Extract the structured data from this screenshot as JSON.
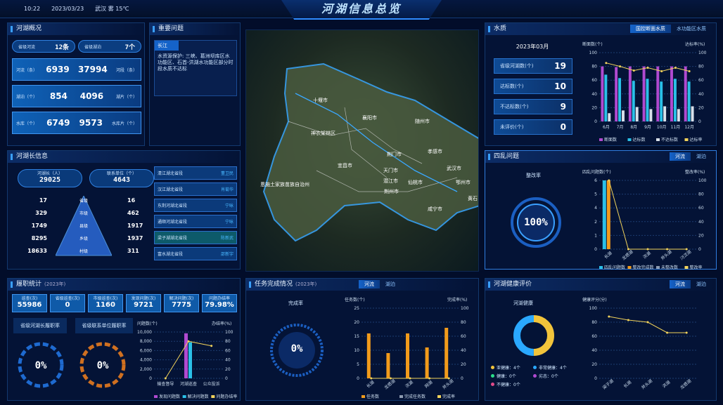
{
  "header": {
    "time": "10:22",
    "date": "2023/03/23",
    "weather": "武汉 雾 15℃",
    "title": "河湖信息总览"
  },
  "overview": {
    "title": "河湖概况",
    "rivers_label": "省级河流",
    "rivers_count": "12条",
    "lakes_label": "省级湖泊",
    "lakes_count": "7个",
    "rows": [
      {
        "l": "河流（条）",
        "v1": "6939",
        "v2": "37994",
        "r": "河段（条）"
      },
      {
        "l": "湖泊（个）",
        "v1": "854",
        "v2": "4096",
        "r": "湖片（个）"
      },
      {
        "l": "水库（个）",
        "v1": "6749",
        "v2": "9573",
        "r": "水库片（个）"
      }
    ]
  },
  "issues": {
    "title": "重要问题",
    "tag": "长江",
    "text": "水资源保护: 三峡、葛洲坝库区水功能区、石首-洪湖水功能区部分时段水质不达标"
  },
  "water": {
    "title": "水质",
    "tabs": [
      "国控断面水质",
      "水功能区水质"
    ],
    "month": "2023年03月",
    "stats": [
      {
        "l": "省级河湖数(个)",
        "v": "19"
      },
      {
        "l": "达标数(个)",
        "v": "10"
      },
      {
        "l": "不达标数(个)",
        "v": "9"
      },
      {
        "l": "未评价(个)",
        "v": "0"
      }
    ],
    "chart_ylabel": "断面数(个)",
    "chart_y2label": "达标率(%)",
    "legend": [
      "断面数",
      "达标数",
      "不达标数",
      "达标率"
    ]
  },
  "chiefs": {
    "title": "河湖长信息",
    "chief_label": "河湖长（人）",
    "chief_count": "29025",
    "unit_label": "联系单位（个）",
    "unit_count": "4643",
    "levels": [
      {
        "l": "17",
        "n": "省级",
        "r": "16"
      },
      {
        "l": "329",
        "n": "市级",
        "r": "462"
      },
      {
        "l": "1749",
        "n": "县级",
        "r": "1917"
      },
      {
        "l": "8295",
        "n": "乡级",
        "r": "1937"
      },
      {
        "l": "18633",
        "n": "村级",
        "r": "311"
      }
    ],
    "list": [
      {
        "n": "清江湖北省段",
        "p": "董卫民"
      },
      {
        "n": "汉江湖北省段",
        "p": "肖菊华"
      },
      {
        "n": "东荆河湖北省段",
        "p": "宁咏"
      },
      {
        "n": "通顺河湖北省段",
        "p": "宁咏"
      },
      {
        "n": "梁子湖湖北省段",
        "p": "陈新武"
      },
      {
        "n": "富水湖北省段",
        "p": "邵新宇"
      }
    ]
  },
  "map": {
    "labels": [
      "十堰市",
      "襄阳市",
      "随州市",
      "神农架林区",
      "荆门市",
      "孝感市",
      "宜昌市",
      "恩施土家族苗族自治州",
      "天门市",
      "武汉市",
      "潜江市",
      "仙桃市",
      "荆州市",
      "鄂州市",
      "咸宁市",
      "黄石"
    ]
  },
  "four": {
    "title": "四乱问题",
    "tabs": [
      "河流",
      "湖泊"
    ],
    "ring_title": "整改率",
    "ring_value": "100",
    "ylabel": "四乱问题数(个)",
    "y2label": "整改率(%)",
    "legend": [
      "四乱问题数",
      "整改完成数",
      "未整改数",
      "整改率"
    ]
  },
  "duty": {
    "title": "履职统计",
    "sub": "(2023年)",
    "stats": [
      {
        "l": "巡查(次)",
        "v": "55986"
      },
      {
        "l": "省级巡查(次)",
        "v": "0"
      },
      {
        "l": "市级巡查(次)",
        "v": "1160"
      },
      {
        "l": "发现问题(次)",
        "v": "9721"
      },
      {
        "l": "解决问题(次)",
        "v": "7775"
      },
      {
        "l": "问题办结率",
        "v": "79.98%"
      }
    ],
    "rate1": "省级河湖长履职率",
    "rate2": "省级联系单位履职率",
    "v1": "0",
    "v2": "0",
    "ylabel": "问题数(个)",
    "y2label": "办结率(%)",
    "legend": [
      "发现问题数",
      "解决问题数",
      "问题办结率"
    ]
  },
  "task": {
    "title": "任务完成情况",
    "sub": "(2023年)",
    "tabs": [
      "河流",
      "湖泊"
    ],
    "ring_title": "完成率",
    "ring_value": "0",
    "ylabel": "任务数(个)",
    "y2label": "完成率(%)",
    "legend": [
      "任务数",
      "完成任务数",
      "完成率"
    ]
  },
  "health": {
    "title": "河湖健康评价",
    "tabs": [
      "河流",
      "湖泊"
    ],
    "pie_title": "河湖健康",
    "ylabel": "健康评分(分)",
    "legend": [
      "亚健康：4个",
      "非常健康：4个",
      "健康：0个",
      "劣态：0个",
      "不健康：0个"
    ]
  },
  "chart_data": [
    {
      "type": "bar",
      "title": "水质",
      "categories": [
        "6月",
        "7月",
        "8月",
        "9月",
        "10月",
        "11月",
        "12月"
      ],
      "series": [
        {
          "name": "断面数",
          "values": [
            80,
            79,
            80,
            80,
            80,
            80,
            80
          ]
        },
        {
          "name": "达标数",
          "values": [
            68,
            63,
            59,
            62,
            58,
            62,
            58
          ]
        },
        {
          "name": "不达标数",
          "values": [
            12,
            16,
            21,
            18,
            22,
            18,
            22
          ]
        },
        {
          "name": "达标率",
          "values": [
            85,
            80,
            74,
            78,
            73,
            78,
            73
          ]
        }
      ],
      "ylim": [
        0,
        100
      ],
      "y2lim": [
        0,
        100
      ]
    },
    {
      "type": "bar",
      "title": "四乱问题",
      "categories": [
        "长湖",
        "龙感湖",
        "洪湖",
        "斧头湖",
        "汈汊湖"
      ],
      "series": [
        {
          "name": "四乱问题数",
          "values": [
            6,
            0,
            0,
            0,
            0
          ]
        },
        {
          "name": "整改完成数",
          "values": [
            6,
            0,
            0,
            0,
            0
          ]
        },
        {
          "name": "未整改数",
          "values": [
            0,
            0,
            0,
            0,
            0
          ]
        },
        {
          "name": "整改率",
          "values": [
            100,
            0,
            0,
            0,
            0
          ]
        }
      ],
      "ylim": [
        0,
        6
      ],
      "y2lim": [
        0,
        100
      ]
    },
    {
      "type": "bar",
      "title": "履职统计",
      "categories": [
        "输查督导",
        "河湖巡查",
        "公众投诉"
      ],
      "series": [
        {
          "name": "发现问题数",
          "values": [
            0,
            9721,
            0
          ]
        },
        {
          "name": "解决问题数",
          "values": [
            0,
            7775,
            0
          ]
        },
        {
          "name": "问题办结率",
          "values": [
            0,
            80,
            70
          ]
        }
      ],
      "ylim": [
        0,
        10000
      ],
      "y2lim": [
        0,
        100
      ]
    },
    {
      "type": "bar",
      "title": "任务完成情况",
      "categories": [
        "长湖",
        "龙感湖",
        "洪湖",
        "网湖",
        "斧头湖"
      ],
      "series": [
        {
          "name": "任务数",
          "values": [
            16,
            9,
            16,
            11,
            18
          ]
        },
        {
          "name": "完成任务数",
          "values": [
            0,
            0,
            0,
            0,
            0
          ]
        },
        {
          "name": "完成率",
          "values": [
            0,
            0,
            0,
            0,
            0
          ]
        }
      ],
      "ylim": [
        0,
        25
      ],
      "y2lim": [
        0,
        100
      ]
    },
    {
      "type": "line",
      "title": "河湖健康评价",
      "categories": [
        "梁子湖",
        "长湖",
        "斧头湖",
        "洪湖",
        "龙感湖"
      ],
      "series": [
        {
          "name": "健康评分",
          "values": [
            88,
            83,
            80,
            65,
            65
          ]
        }
      ],
      "ylim": [
        0,
        100
      ]
    }
  ]
}
